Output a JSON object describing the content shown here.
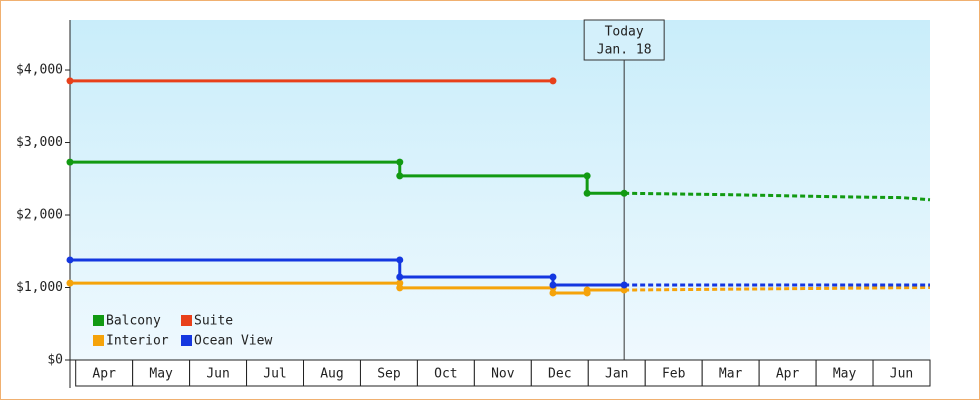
{
  "chart_data": {
    "type": "step-line",
    "xlim": [
      -0.1,
      15
    ],
    "ylim": [
      0,
      4690
    ],
    "xticks": [
      {
        "value": 0.5,
        "label": "Apr"
      },
      {
        "value": 1.5,
        "label": "May"
      },
      {
        "value": 2.5,
        "label": "Jun"
      },
      {
        "value": 3.5,
        "label": "Jul"
      },
      {
        "value": 4.5,
        "label": "Aug"
      },
      {
        "value": 5.5,
        "label": "Sep"
      },
      {
        "value": 6.5,
        "label": "Oct"
      },
      {
        "value": 7.5,
        "label": "Nov"
      },
      {
        "value": 8.5,
        "label": "Dec"
      },
      {
        "value": 9.5,
        "label": "Jan"
      },
      {
        "value": 10.5,
        "label": "Feb"
      },
      {
        "value": 11.5,
        "label": "Mar"
      },
      {
        "value": 12.5,
        "label": "Apr"
      },
      {
        "value": 13.5,
        "label": "May"
      },
      {
        "value": 14.5,
        "label": "Jun"
      }
    ],
    "yticks": [
      {
        "value": 0,
        "label": "$0"
      },
      {
        "value": 1000,
        "label": "$1,000"
      },
      {
        "value": 2000,
        "label": "$2,000"
      },
      {
        "value": 3000,
        "label": "$3,000"
      },
      {
        "value": 4000,
        "label": "$4,000"
      }
    ],
    "annotation": {
      "x": 9.63,
      "lines": [
        "Today",
        "Jan. 18"
      ]
    },
    "legend": "lower-left",
    "series": [
      {
        "name": "Balcony",
        "color": "#129a12",
        "x": [
          -0.1,
          5.69,
          5.69,
          8.98,
          8.98,
          9.63
        ],
        "values": [
          2730,
          2730,
          2540,
          2540,
          2300,
          2300
        ],
        "forecast": {
          "x": [
            9.63,
            11.5,
            13.5,
            14.5,
            15
          ],
          "values": [
            2300,
            2280,
            2250,
            2240,
            2210
          ]
        }
      },
      {
        "name": "Suite",
        "color": "#e8401a",
        "x": [
          -0.1,
          8.38
        ],
        "values": [
          3850,
          3850
        ]
      },
      {
        "name": "Interior",
        "color": "#f5a30a",
        "x": [
          -0.1,
          5.69,
          5.69,
          8.38,
          8.38,
          8.98,
          8.98,
          9.63
        ],
        "values": [
          1060,
          1060,
          995,
          995,
          925,
          925,
          965,
          965
        ],
        "forecast": {
          "x": [
            9.63,
            15
          ],
          "values": [
            965,
            1000
          ]
        }
      },
      {
        "name": "Ocean View",
        "color": "#1437e0",
        "x": [
          -0.1,
          5.69,
          5.69,
          8.38,
          8.38,
          9.63
        ],
        "values": [
          1380,
          1380,
          1145,
          1145,
          1035,
          1035
        ],
        "forecast": {
          "x": [
            9.63,
            15
          ],
          "values": [
            1035,
            1035
          ]
        }
      }
    ]
  }
}
